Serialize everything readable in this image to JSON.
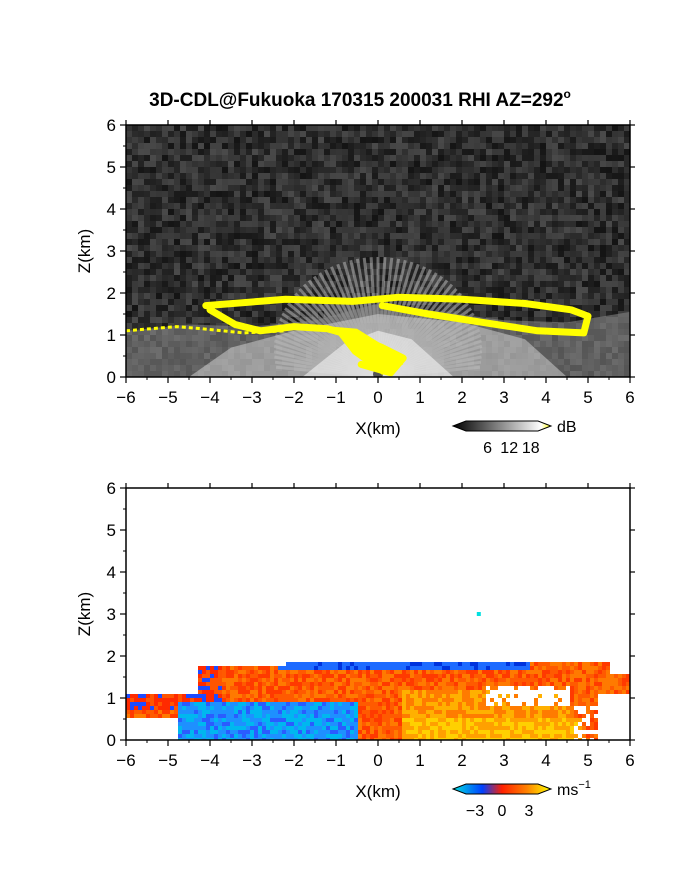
{
  "title": "3D-CDL@Fukuoka 170315 200031 RHI AZ=292",
  "title_superscript": "o",
  "chart_data": [
    {
      "type": "heatmap",
      "quantity": "reflectivity",
      "xlabel": "X(km)",
      "ylabel": "Z(km)",
      "xlim": [
        -6,
        6
      ],
      "ylim": [
        0,
        6
      ],
      "xticks": [
        "-6",
        "-5",
        "-4",
        "-3",
        "-2",
        "-1",
        "0",
        "1",
        "2",
        "3",
        "4",
        "5",
        "6"
      ],
      "yticks": [
        "0",
        "1",
        "2",
        "3",
        "4",
        "5",
        "6"
      ],
      "grid": false,
      "colorbar": {
        "unit": "dB",
        "ticks": [
          "6",
          "12",
          "18"
        ],
        "range": [
          0,
          20
        ],
        "colors": [
          "#000000",
          "#ffffff",
          "#ffff00"
        ]
      },
      "features": [
        {
          "kind": "yellow_layer",
          "points": [
            [
              -4.1,
              1.7
            ],
            [
              -2.2,
              1.85
            ],
            [
              -0.6,
              1.8
            ],
            [
              0.5,
              1.9
            ],
            [
              2.0,
              1.85
            ],
            [
              3.5,
              1.75
            ],
            [
              4.6,
              1.6
            ],
            [
              5.0,
              1.45
            ],
            [
              4.9,
              1.05
            ],
            [
              3.8,
              1.1
            ],
            [
              2.5,
              1.3
            ],
            [
              1.2,
              1.5
            ],
            [
              0.1,
              1.7
            ]
          ]
        },
        {
          "kind": "yellow_layer",
          "points": [
            [
              -4.0,
              1.6
            ],
            [
              -3.4,
              1.25
            ],
            [
              -2.8,
              1.1
            ],
            [
              -2.0,
              1.2
            ],
            [
              -1.2,
              1.15
            ],
            [
              -0.5,
              0.95
            ],
            [
              0.1,
              0.7
            ],
            [
              0.6,
              0.45
            ],
            [
              0.3,
              0.1
            ],
            [
              -0.4,
              0.3
            ]
          ]
        },
        {
          "kind": "yellow_layer",
          "points": [
            [
              -6.0,
              1.1
            ],
            [
              -4.8,
              1.2
            ],
            [
              -4.2,
              1.15
            ],
            [
              -3.2,
              1.05
            ],
            [
              -2.2,
              1.1
            ]
          ]
        }
      ]
    },
    {
      "type": "heatmap",
      "quantity": "radial velocity",
      "xlabel": "X(km)",
      "ylabel": "Z(km)",
      "xlim": [
        -6,
        6
      ],
      "ylim": [
        0,
        6
      ],
      "xticks": [
        "-6",
        "-5",
        "-4",
        "-3",
        "-2",
        "-1",
        "0",
        "1",
        "2",
        "3",
        "4",
        "5",
        "6"
      ],
      "yticks": [
        "0",
        "1",
        "2",
        "3",
        "4",
        "5",
        "6"
      ],
      "grid": false,
      "colorbar": {
        "unit": "ms",
        "unit_superscript": "−1",
        "ticks": [
          "−3",
          "0",
          "3"
        ],
        "range": [
          -4,
          4
        ],
        "colors": [
          "#00e0e0",
          "#0040ff",
          "#ff2000",
          "#ff8000",
          "#ffff00"
        ]
      },
      "features": [
        {
          "kind": "positive_velocity",
          "x": [
            -6.0,
            6.0
          ],
          "z": [
            0.0,
            1.9
          ]
        },
        {
          "kind": "negative_velocity",
          "x": [
            -4.8,
            -0.5
          ],
          "z": [
            0.0,
            1.0
          ]
        },
        {
          "kind": "negative_velocity_top",
          "x": [
            -2.4,
            3.5
          ],
          "z": [
            1.7,
            1.95
          ]
        },
        {
          "kind": "isolated_echo",
          "x": 2.4,
          "z": 3.0
        }
      ]
    }
  ]
}
